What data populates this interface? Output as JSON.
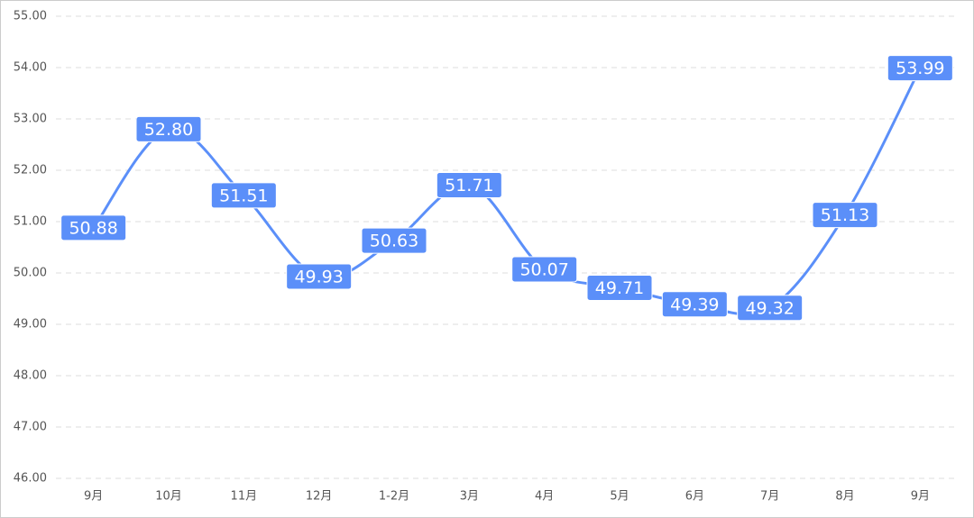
{
  "chart_data": {
    "type": "line",
    "categories": [
      "9月",
      "10月",
      "11月",
      "12月",
      "1-2月",
      "3月",
      "4月",
      "5月",
      "6月",
      "7月",
      "8月",
      "9月"
    ],
    "values": [
      50.88,
      52.8,
      51.51,
      49.93,
      50.63,
      51.71,
      50.07,
      49.71,
      49.39,
      49.32,
      51.13,
      53.99
    ],
    "value_labels": [
      "50.88",
      "52.80",
      "51.51",
      "49.93",
      "50.63",
      "51.71",
      "50.07",
      "49.71",
      "49.39",
      "49.32",
      "51.13",
      "53.99"
    ],
    "color": "#5b8ff9",
    "ylim": [
      46,
      55
    ],
    "yticks": [
      {
        "value": 46,
        "label": "46.00"
      },
      {
        "value": 47,
        "label": "47.00"
      },
      {
        "value": 48,
        "label": "48.00"
      },
      {
        "value": 49,
        "label": "49.00"
      },
      {
        "value": 50,
        "label": "50.00"
      },
      {
        "value": 51,
        "label": "51.00"
      },
      {
        "value": 52,
        "label": "52.00"
      },
      {
        "value": 53,
        "label": "53.00"
      },
      {
        "value": 54,
        "label": "54.00"
      },
      {
        "value": 55,
        "label": "55.00"
      }
    ],
    "grid": true
  }
}
